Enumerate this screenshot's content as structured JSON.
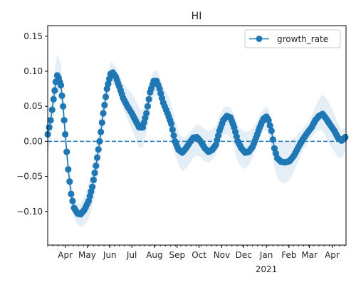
{
  "colors": {
    "series": "#1f77b4",
    "band": "#1f77b4",
    "axis": "#000000",
    "text": "#262626"
  },
  "chart_data": {
    "type": "line",
    "title": "HI",
    "xlabel": "",
    "ylabel": "",
    "x_start": "2020-03-08",
    "x_end": "2021-04-20",
    "ylim": [
      -0.148,
      0.165
    ],
    "yticks": [
      -0.1,
      -0.05,
      0.0,
      0.05,
      0.1,
      0.15
    ],
    "ytick_labels": [
      "−0.10",
      "−0.05",
      "0.00",
      "0.05",
      "0.10",
      "0.15"
    ],
    "xticks": [
      {
        "date": "2020-04-01",
        "label": "Apr"
      },
      {
        "date": "2020-05-01",
        "label": "May"
      },
      {
        "date": "2020-06-01",
        "label": "Jun"
      },
      {
        "date": "2020-07-01",
        "label": "Jul"
      },
      {
        "date": "2020-08-01",
        "label": "Aug"
      },
      {
        "date": "2020-09-01",
        "label": "Sep"
      },
      {
        "date": "2020-10-01",
        "label": "Oct"
      },
      {
        "date": "2020-11-01",
        "label": "Nov"
      },
      {
        "date": "2020-12-01",
        "label": "Dec"
      },
      {
        "date": "2021-01-01",
        "label": "Jan",
        "sublabel": "2021"
      },
      {
        "date": "2021-02-01",
        "label": "Feb"
      },
      {
        "date": "2021-03-01",
        "label": "Mar"
      },
      {
        "date": "2021-04-01",
        "label": "Apr"
      }
    ],
    "reference_line": {
      "y": 0.0,
      "style": "dashed"
    },
    "legend": {
      "position": "top-right",
      "entries": [
        "growth_rate"
      ]
    },
    "series": [
      {
        "name": "growth_rate",
        "points": [
          [
            "2020-03-08",
            0.01
          ],
          [
            "2020-03-12",
            0.03
          ],
          [
            "2020-03-16",
            0.06
          ],
          [
            "2020-03-19",
            0.085
          ],
          [
            "2020-03-21",
            0.094
          ],
          [
            "2020-03-23",
            0.09
          ],
          [
            "2020-03-26",
            0.08
          ],
          [
            "2020-03-29",
            0.05
          ],
          [
            "2020-04-01",
            0.01
          ],
          [
            "2020-04-05",
            -0.04
          ],
          [
            "2020-04-09",
            -0.075
          ],
          [
            "2020-04-13",
            -0.095
          ],
          [
            "2020-04-18",
            -0.103
          ],
          [
            "2020-04-22",
            -0.104
          ],
          [
            "2020-04-27",
            -0.098
          ],
          [
            "2020-05-03",
            -0.085
          ],
          [
            "2020-05-08",
            -0.065
          ],
          [
            "2020-05-13",
            -0.035
          ],
          [
            "2020-05-18",
            0.0
          ],
          [
            "2020-05-23",
            0.04
          ],
          [
            "2020-05-28",
            0.075
          ],
          [
            "2020-06-02",
            0.096
          ],
          [
            "2020-06-05",
            0.098
          ],
          [
            "2020-06-09",
            0.092
          ],
          [
            "2020-06-14",
            0.078
          ],
          [
            "2020-06-19",
            0.062
          ],
          [
            "2020-06-25",
            0.05
          ],
          [
            "2020-07-01",
            0.04
          ],
          [
            "2020-07-06",
            0.03
          ],
          [
            "2020-07-11",
            0.02
          ],
          [
            "2020-07-16",
            0.02
          ],
          [
            "2020-07-21",
            0.04
          ],
          [
            "2020-07-26",
            0.07
          ],
          [
            "2020-07-31",
            0.086
          ],
          [
            "2020-08-04",
            0.086
          ],
          [
            "2020-08-08",
            0.075
          ],
          [
            "2020-08-13",
            0.055
          ],
          [
            "2020-08-19",
            0.04
          ],
          [
            "2020-08-24",
            0.025
          ],
          [
            "2020-08-29",
            0.0
          ],
          [
            "2020-09-03",
            -0.012
          ],
          [
            "2020-09-08",
            -0.016
          ],
          [
            "2020-09-13",
            -0.01
          ],
          [
            "2020-09-18",
            -0.002
          ],
          [
            "2020-09-23",
            0.005
          ],
          [
            "2020-09-28",
            0.006
          ],
          [
            "2020-10-03",
            0.0
          ],
          [
            "2020-10-09",
            -0.01
          ],
          [
            "2020-10-14",
            -0.015
          ],
          [
            "2020-10-19",
            -0.012
          ],
          [
            "2020-10-24",
            -0.005
          ],
          [
            "2020-10-29",
            0.015
          ],
          [
            "2020-11-03",
            0.03
          ],
          [
            "2020-11-08",
            0.036
          ],
          [
            "2020-11-13",
            0.034
          ],
          [
            "2020-11-18",
            0.02
          ],
          [
            "2020-11-23",
            0.0
          ],
          [
            "2020-11-28",
            -0.01
          ],
          [
            "2020-12-03",
            -0.016
          ],
          [
            "2020-12-08",
            -0.015
          ],
          [
            "2020-12-13",
            -0.008
          ],
          [
            "2020-12-18",
            0.005
          ],
          [
            "2020-12-23",
            0.02
          ],
          [
            "2020-12-28",
            0.032
          ],
          [
            "2021-01-01",
            0.035
          ],
          [
            "2021-01-04",
            0.03
          ],
          [
            "2021-01-08",
            0.015
          ],
          [
            "2021-01-12",
            -0.01
          ],
          [
            "2021-01-16",
            -0.024
          ],
          [
            "2021-01-21",
            -0.029
          ],
          [
            "2021-01-27",
            -0.03
          ],
          [
            "2021-02-02",
            -0.028
          ],
          [
            "2021-02-08",
            -0.02
          ],
          [
            "2021-02-14",
            -0.008
          ],
          [
            "2021-02-20",
            0.003
          ],
          [
            "2021-02-26",
            0.012
          ],
          [
            "2021-03-04",
            0.02
          ],
          [
            "2021-03-09",
            0.03
          ],
          [
            "2021-03-14",
            0.036
          ],
          [
            "2021-03-19",
            0.039
          ],
          [
            "2021-03-24",
            0.032
          ],
          [
            "2021-03-29",
            0.024
          ],
          [
            "2021-04-04",
            0.015
          ],
          [
            "2021-04-09",
            0.005
          ],
          [
            "2021-04-14",
            0.001
          ],
          [
            "2021-04-19",
            0.006
          ]
        ],
        "band_halfwidth": 0.022
      }
    ]
  }
}
